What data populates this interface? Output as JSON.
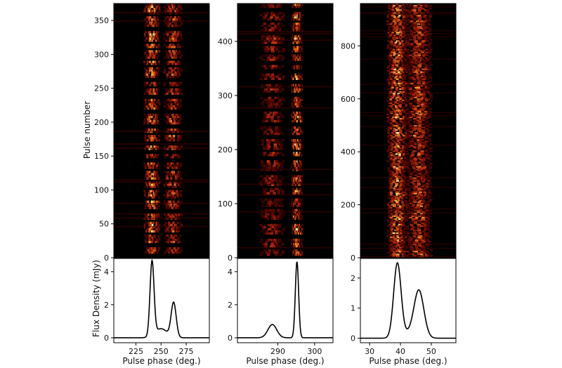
{
  "figure": {
    "top_ylabel": "Pulse number",
    "bottom_ylabel": "Flux Density (mJy)",
    "xlabel": "Pulse phase (deg.)"
  },
  "colors": {
    "background": "#000000",
    "heat_low": "#3a0000",
    "heat_mid": "#c84010",
    "heat_high": "#fff2c0",
    "profile_line": "#000000"
  },
  "chart_data": [
    {
      "type": "heatmap",
      "panel": "left",
      "ylabel": "Pulse number",
      "xlim": [
        203,
        298
      ],
      "ylim": [
        0,
        375
      ],
      "yticks": [
        0,
        50,
        100,
        150,
        200,
        250,
        300,
        350
      ],
      "emission_bands": [
        {
          "center": 241,
          "width": 6,
          "intensity": 1.0
        },
        {
          "center": 262,
          "width": 7,
          "intensity": 0.75
        }
      ],
      "pulse_structure": "bright bursts separated by short nulls (~10 pulses)"
    },
    {
      "type": "line",
      "panel": "left",
      "ylabel": "Flux Density (mJy)",
      "xlabel": "Pulse phase (deg.)",
      "xlim": [
        203,
        298
      ],
      "ylim": [
        -0.3,
        4.8
      ],
      "xticks": [
        225,
        250,
        275
      ],
      "yticks": [
        0,
        2,
        4
      ],
      "components": [
        {
          "center": 241,
          "sigma": 2.0,
          "peak": 4.5
        },
        {
          "center": 250,
          "sigma": 6.0,
          "peak": 0.55
        },
        {
          "center": 262.5,
          "sigma": 2.5,
          "peak": 2.1
        }
      ]
    },
    {
      "type": "heatmap",
      "panel": "middle",
      "xlim": [
        279,
        305
      ],
      "ylim": [
        0,
        470
      ],
      "yticks": [
        0,
        100,
        200,
        300,
        400
      ],
      "emission_bands": [
        {
          "center": 288.5,
          "width": 2.5,
          "intensity": 0.6
        },
        {
          "center": 295.2,
          "width": 1.2,
          "intensity": 1.0
        }
      ],
      "pulse_structure": "intermittent emission with frequent nulls"
    },
    {
      "type": "line",
      "panel": "middle",
      "xlabel": "Pulse phase (deg.)",
      "xlim": [
        279,
        305
      ],
      "ylim": [
        -0.3,
        4.8
      ],
      "xticks": [
        290,
        300
      ],
      "yticks": [
        0,
        2,
        4
      ],
      "components": [
        {
          "center": 288.5,
          "sigma": 1.2,
          "peak": 0.8
        },
        {
          "center": 295.2,
          "sigma": 0.45,
          "peak": 4.6
        }
      ]
    },
    {
      "type": "heatmap",
      "panel": "right",
      "xlim": [
        27,
        58
      ],
      "ylim": [
        0,
        960
      ],
      "yticks": [
        0,
        200,
        400,
        600,
        800
      ],
      "emission_bands": [
        {
          "center": 39,
          "width": 2.5,
          "intensity": 1.0
        },
        {
          "center": 46,
          "width": 3.2,
          "intensity": 0.8
        }
      ],
      "pulse_structure": "steady emission, no clear nulls"
    },
    {
      "type": "line",
      "panel": "right",
      "xlabel": "Pulse phase (deg.)",
      "xlim": [
        27,
        58
      ],
      "ylim": [
        -0.15,
        2.65
      ],
      "xticks": [
        30,
        40,
        50
      ],
      "yticks": [
        0,
        1,
        2
      ],
      "components": [
        {
          "center": 39,
          "sigma": 1.2,
          "peak": 2.45
        },
        {
          "center": 46,
          "sigma": 1.6,
          "peak": 1.55
        },
        {
          "center": 42.5,
          "sigma": 2.5,
          "peak": 0.15
        }
      ]
    }
  ]
}
